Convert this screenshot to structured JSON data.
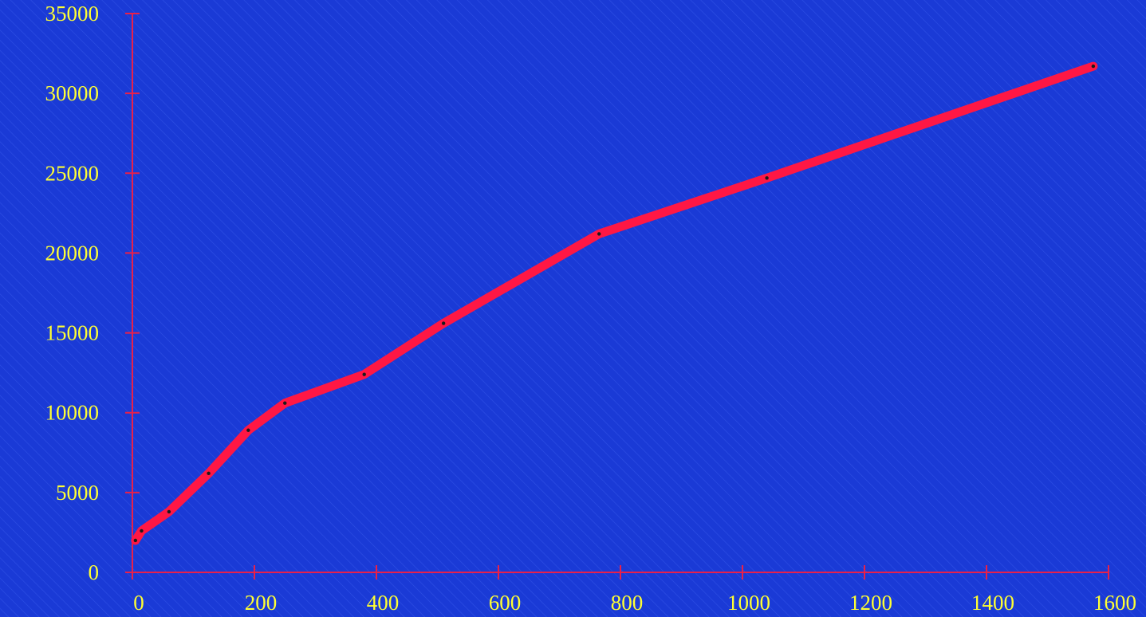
{
  "chart_data": {
    "type": "line",
    "title": "",
    "xlabel": "",
    "ylabel": "",
    "xlim": [
      0,
      1600
    ],
    "ylim": [
      0,
      35000
    ],
    "x_ticks": [
      0,
      200,
      400,
      600,
      800,
      1000,
      1200,
      1400,
      1600
    ],
    "y_ticks": [
      0,
      5000,
      10000,
      15000,
      20000,
      25000,
      30000,
      35000
    ],
    "x_tick_labels": [
      "0",
      "200",
      "400",
      "600",
      "800",
      "1000",
      "1200",
      "1400",
      "1600"
    ],
    "y_tick_labels": [
      "0",
      "5000",
      "10000",
      "15000",
      "20000",
      "25000",
      "30000",
      "35000"
    ],
    "grid": false,
    "legend": "none",
    "series": [
      {
        "x": [
          5,
          15,
          60,
          125,
          190,
          250,
          380,
          510,
          765,
          1040,
          1575
        ],
        "y": [
          2000,
          2600,
          3800,
          6200,
          8900,
          10600,
          12400,
          15600,
          21200,
          24700,
          31700
        ]
      }
    ],
    "colors": {
      "background": "#1a3ad6",
      "background_stripe": "#3f62ee",
      "axis": "#e8204a",
      "line": "#ff1744",
      "marker": "#1a1a1a",
      "tick_label": "#ffff33"
    }
  }
}
